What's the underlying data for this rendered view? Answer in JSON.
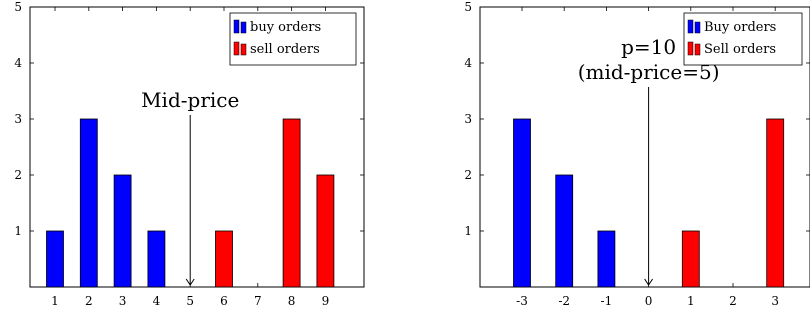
{
  "colors": {
    "buy": "#0000ff",
    "sell": "#ff0000",
    "axis": "#000000",
    "text": "#000000"
  },
  "chart_data": [
    {
      "type": "bar",
      "title": "",
      "xlabel": "",
      "ylabel": "",
      "ylim": [
        0,
        5
      ],
      "yticks": [
        1,
        2,
        3,
        4,
        5
      ],
      "categories": [
        "1",
        "2",
        "3",
        "4",
        "5",
        "6",
        "7",
        "8",
        "9"
      ],
      "series": [
        {
          "name": "buy orders",
          "color": "#0000ff",
          "values": [
            1,
            3,
            2,
            1,
            0,
            0,
            0,
            0,
            0
          ]
        },
        {
          "name": "sell orders",
          "color": "#ff0000",
          "values": [
            0,
            0,
            0,
            0,
            0,
            1,
            0,
            3,
            2
          ]
        }
      ],
      "legend": "top-right",
      "grid": false,
      "annotation": {
        "at": "5",
        "lines": [
          "Mid-price"
        ]
      }
    },
    {
      "type": "bar",
      "title": "",
      "xlabel": "",
      "ylabel": "",
      "ylim": [
        0,
        5
      ],
      "yticks": [
        1,
        2,
        3,
        4,
        5
      ],
      "categories": [
        "-3",
        "-2",
        "-1",
        "0",
        "1",
        "2",
        "3"
      ],
      "series": [
        {
          "name": "Buy orders",
          "color": "#0000ff",
          "values": [
            3,
            2,
            1,
            0,
            0,
            0,
            0
          ]
        },
        {
          "name": "Sell orders",
          "color": "#ff0000",
          "values": [
            0,
            0,
            0,
            0,
            1,
            0,
            3
          ]
        }
      ],
      "legend": "top-right",
      "grid": false,
      "annotation": {
        "at": "0",
        "lines": [
          "p=10",
          "(mid-price=5)"
        ]
      }
    }
  ]
}
